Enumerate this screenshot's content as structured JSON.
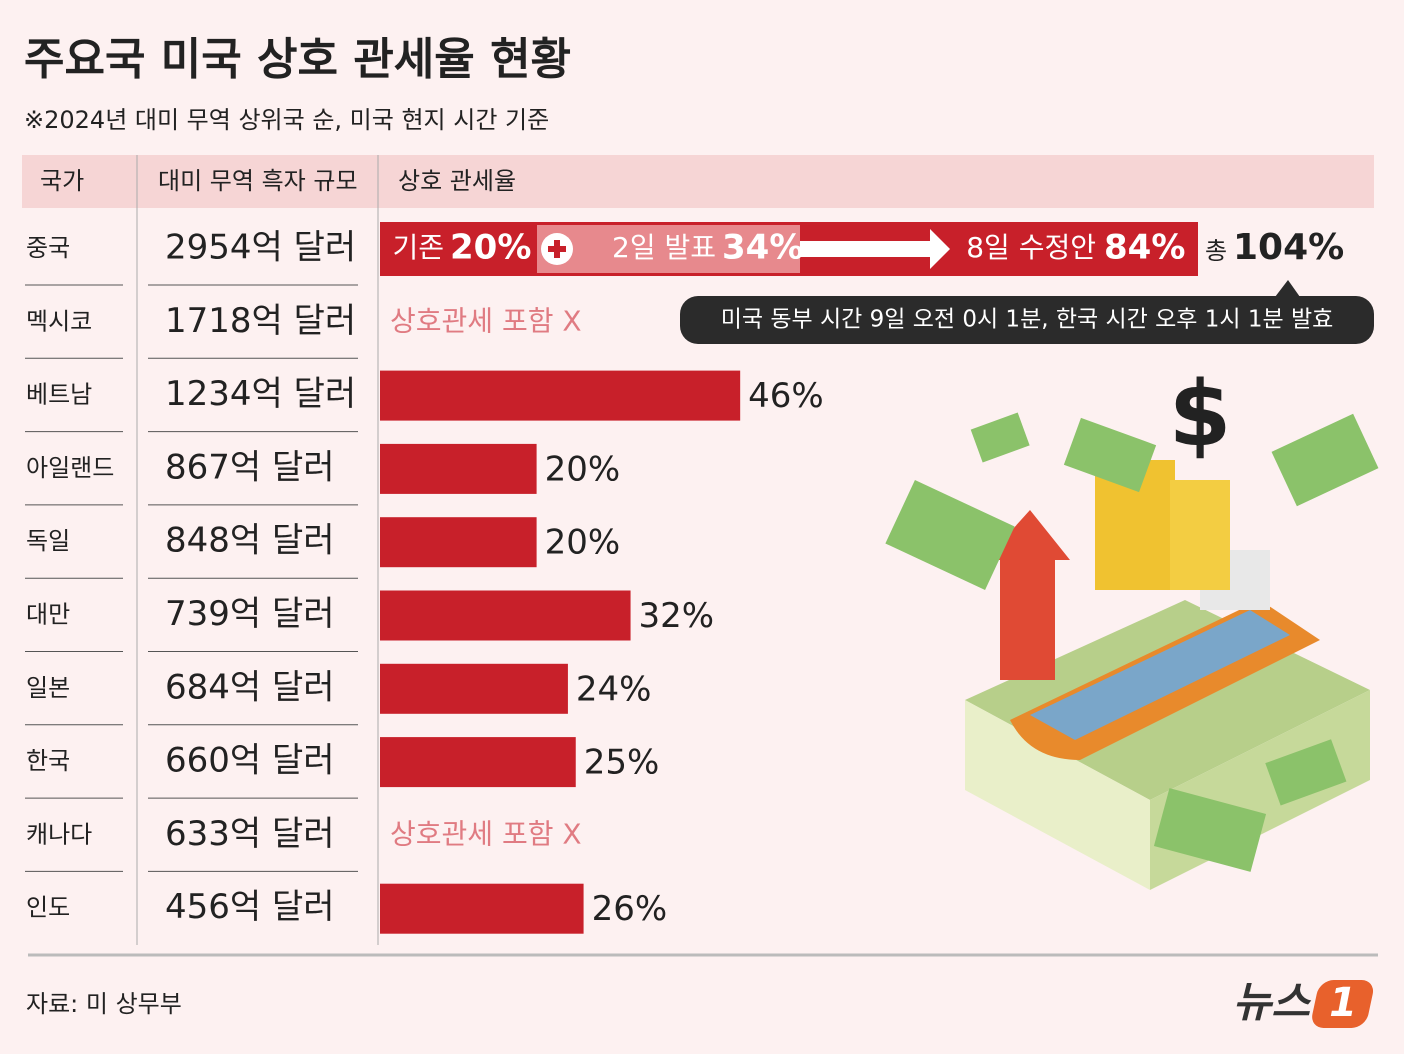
{
  "title": "주요국 미국 상호 관세율 현황",
  "subtitle": "※2024년 대미 무역 상위국 순, 미국 현지 시간 기준",
  "columns": [
    "국가",
    "대미 무역 흑자 규모",
    "상호 관세율"
  ],
  "chart_data": {
    "type": "bar",
    "orientation": "horizontal",
    "color": "#c8202a",
    "categories": [
      "중국",
      "멕시코",
      "베트남",
      "아일랜드",
      "독일",
      "대만",
      "일본",
      "한국",
      "캐나다",
      "인도"
    ],
    "surplus_labels": [
      "2954억 달러",
      "1718억 달러",
      "1234억 달러",
      "867억 달러",
      "848억 달러",
      "739억 달러",
      "684억 달러",
      "660억 달러",
      "633억 달러",
      "456억 달러"
    ],
    "values": [
      104,
      null,
      46,
      20,
      20,
      32,
      24,
      25,
      null,
      26
    ],
    "value_labels": [
      "104%",
      "상호관세 포함 X",
      "46%",
      "20%",
      "20%",
      "32%",
      "24%",
      "25%",
      "상호관세 포함 X",
      "26%"
    ],
    "china_segments": [
      {
        "name": "기존",
        "value": 20,
        "label": "20%"
      },
      {
        "name": "2일 발표",
        "value": 34,
        "label": "34%"
      },
      {
        "name": "8일 수정안",
        "value": 84,
        "label": "84%"
      }
    ],
    "china_total_name": "총"
  },
  "note": "미국 동부 시간 9일 오전 0시 1분, 한국 시간 오후 1시 1분 발효",
  "source": "자료: 미 상무부",
  "logo": {
    "text": "뉴스",
    "mark": "1"
  }
}
